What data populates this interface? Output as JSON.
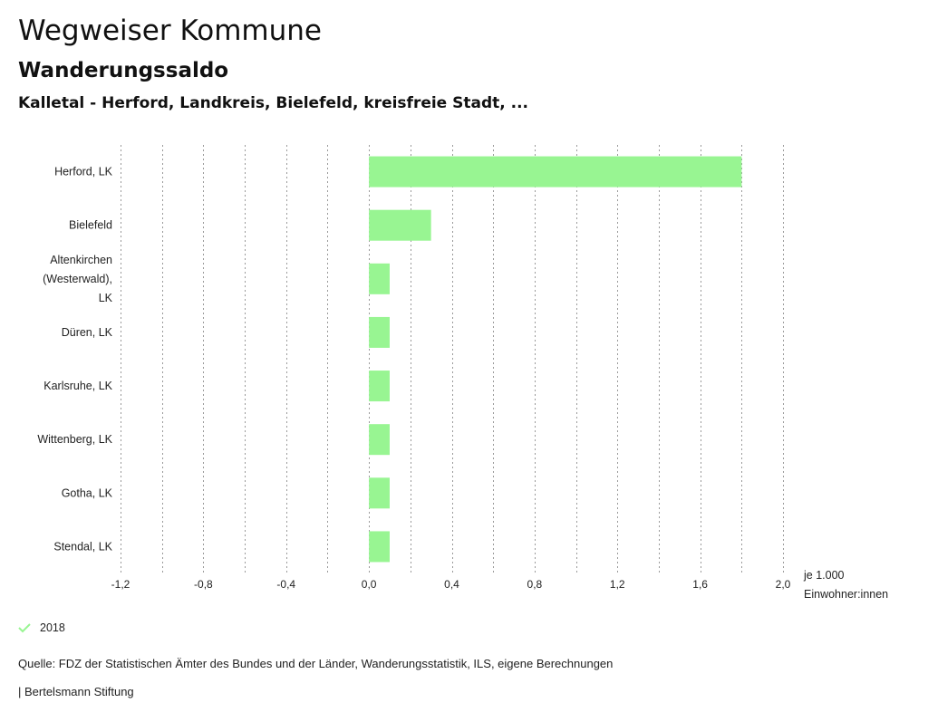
{
  "header": {
    "title": "Wegweiser Kommune",
    "subtitle": "Wanderungssaldo",
    "region": "Kalletal - Herford, Landkreis, Bielefeld, kreisfreie Stadt, ..."
  },
  "colors": {
    "bar": "#98f592",
    "grid": "#9a9a9a",
    "check": "#98f592"
  },
  "chart_data": {
    "type": "bar",
    "orientation": "horizontal",
    "categories": [
      "Herford, LK",
      "Bielefeld",
      "Altenkirchen (Westerwald), LK",
      "Düren, LK",
      "Karlsruhe, LK",
      "Wittenberg, LK",
      "Gotha, LK",
      "Stendal, LK"
    ],
    "category_lines": [
      [
        "Herford, LK"
      ],
      [
        "Bielefeld"
      ],
      [
        "Altenkirchen",
        "(Westerwald),",
        "LK"
      ],
      [
        "Düren, LK"
      ],
      [
        "Karlsruhe, LK"
      ],
      [
        "Wittenberg, LK"
      ],
      [
        "Gotha, LK"
      ],
      [
        "Stendal, LK"
      ]
    ],
    "series": [
      {
        "name": "2018",
        "values": [
          1.8,
          0.3,
          0.1,
          0.1,
          0.1,
          0.1,
          0.1,
          0.1
        ]
      }
    ],
    "xlim": [
      -1.2,
      2.0
    ],
    "ticks": [
      -1.2,
      -0.8,
      -0.4,
      0.0,
      0.4,
      0.8,
      1.2,
      1.6,
      2.0
    ],
    "tick_labels": [
      "-1,2",
      "-0,8",
      "-0,4",
      "0,0",
      "0,4",
      "0,8",
      "1,2",
      "1,6",
      "2,0"
    ],
    "grid_step": 0.2,
    "grid": true,
    "unit_label": [
      "je 1.000",
      "Einwohner:innen"
    ],
    "legend": "bottom-left"
  },
  "legend": {
    "label": "2018"
  },
  "footer": {
    "source": "Quelle: FDZ der Statistischen Ämter des Bundes und der Länder, Wanderungsstatistik, ILS, eigene Berechnungen",
    "credit": "| Bertelsmann Stiftung"
  }
}
